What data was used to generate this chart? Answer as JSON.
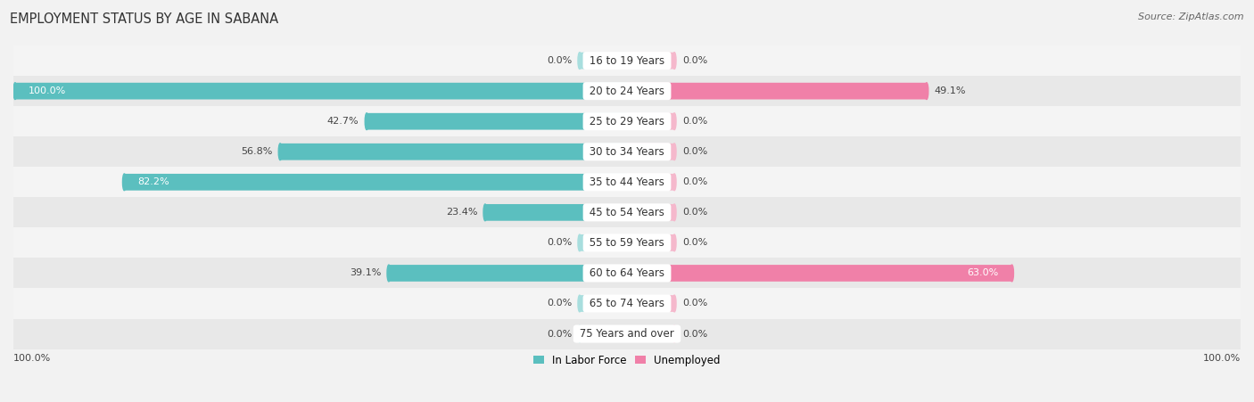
{
  "title": "EMPLOYMENT STATUS BY AGE IN SABANA",
  "source": "Source: ZipAtlas.com",
  "categories": [
    "16 to 19 Years",
    "20 to 24 Years",
    "25 to 29 Years",
    "30 to 34 Years",
    "35 to 44 Years",
    "45 to 54 Years",
    "55 to 59 Years",
    "60 to 64 Years",
    "65 to 74 Years",
    "75 Years and over"
  ],
  "labor_force": [
    0.0,
    100.0,
    42.7,
    56.8,
    82.2,
    23.4,
    0.0,
    39.1,
    0.0,
    0.0
  ],
  "unemployed": [
    0.0,
    49.1,
    0.0,
    0.0,
    0.0,
    0.0,
    0.0,
    63.0,
    0.0,
    0.0
  ],
  "labor_force_color": "#5bbfbf",
  "unemployed_color": "#f080a8",
  "labor_force_stub_color": "#a8dede",
  "unemployed_stub_color": "#f5b8cc",
  "labor_force_label": "In Labor Force",
  "unemployed_label": "Unemployed",
  "bg_row_light": "#f4f4f4",
  "bg_row_dark": "#e8e8e8",
  "max_value": 100.0,
  "stub_value": 8.0,
  "title_fontsize": 10.5,
  "label_fontsize": 8.0,
  "tick_fontsize": 8.0,
  "source_fontsize": 8.0,
  "cat_label_fontsize": 8.5
}
